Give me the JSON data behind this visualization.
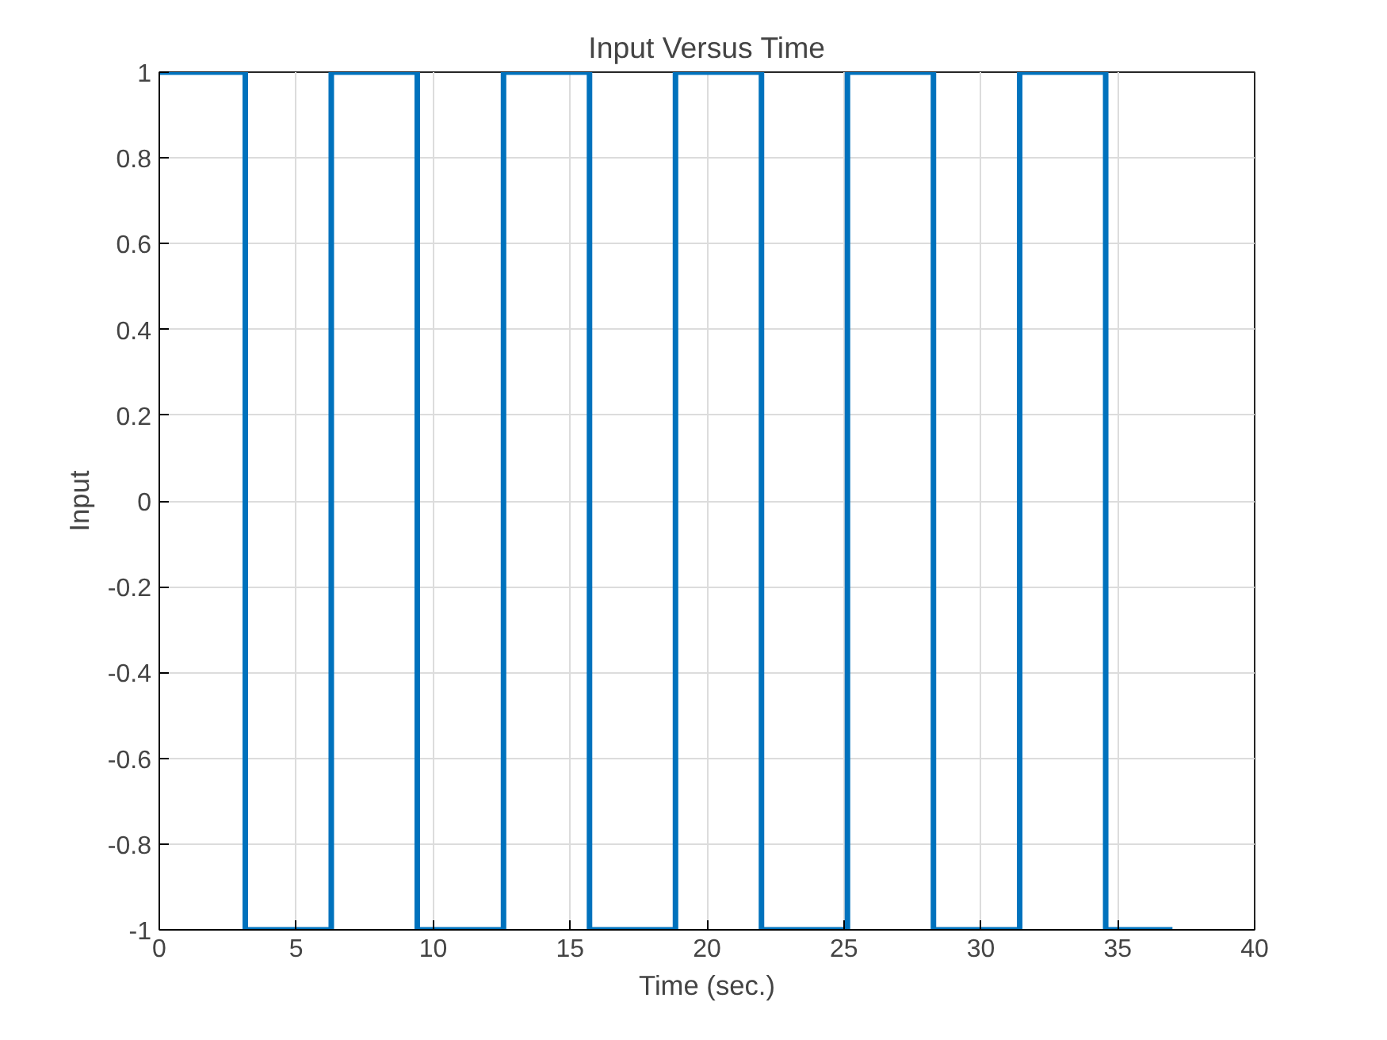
{
  "chart_data": {
    "type": "step",
    "title": "Input Versus Time",
    "xlabel": "Time (sec.)",
    "ylabel": "Input",
    "x": [
      0,
      3.14,
      6.28,
      9.42,
      12.57,
      15.71,
      18.85,
      21.99,
      25.13,
      28.27,
      31.42,
      34.56,
      37
    ],
    "series": [
      {
        "color": "#0072bd",
        "values": [
          1,
          -1,
          1,
          -1,
          1,
          -1,
          1,
          -1,
          1,
          -1,
          1,
          -1,
          -1
        ]
      }
    ],
    "xlim": [
      0,
      40
    ],
    "xticks": [
      0,
      5,
      10,
      15,
      20,
      25,
      30,
      35,
      40
    ],
    "ylim": [
      -1,
      1
    ],
    "yticks": [
      -1,
      -0.8,
      -0.6,
      -0.4,
      -0.2,
      0,
      0.2,
      0.4,
      0.6,
      0.8,
      1
    ],
    "grid": true,
    "line_style": "solid"
  }
}
